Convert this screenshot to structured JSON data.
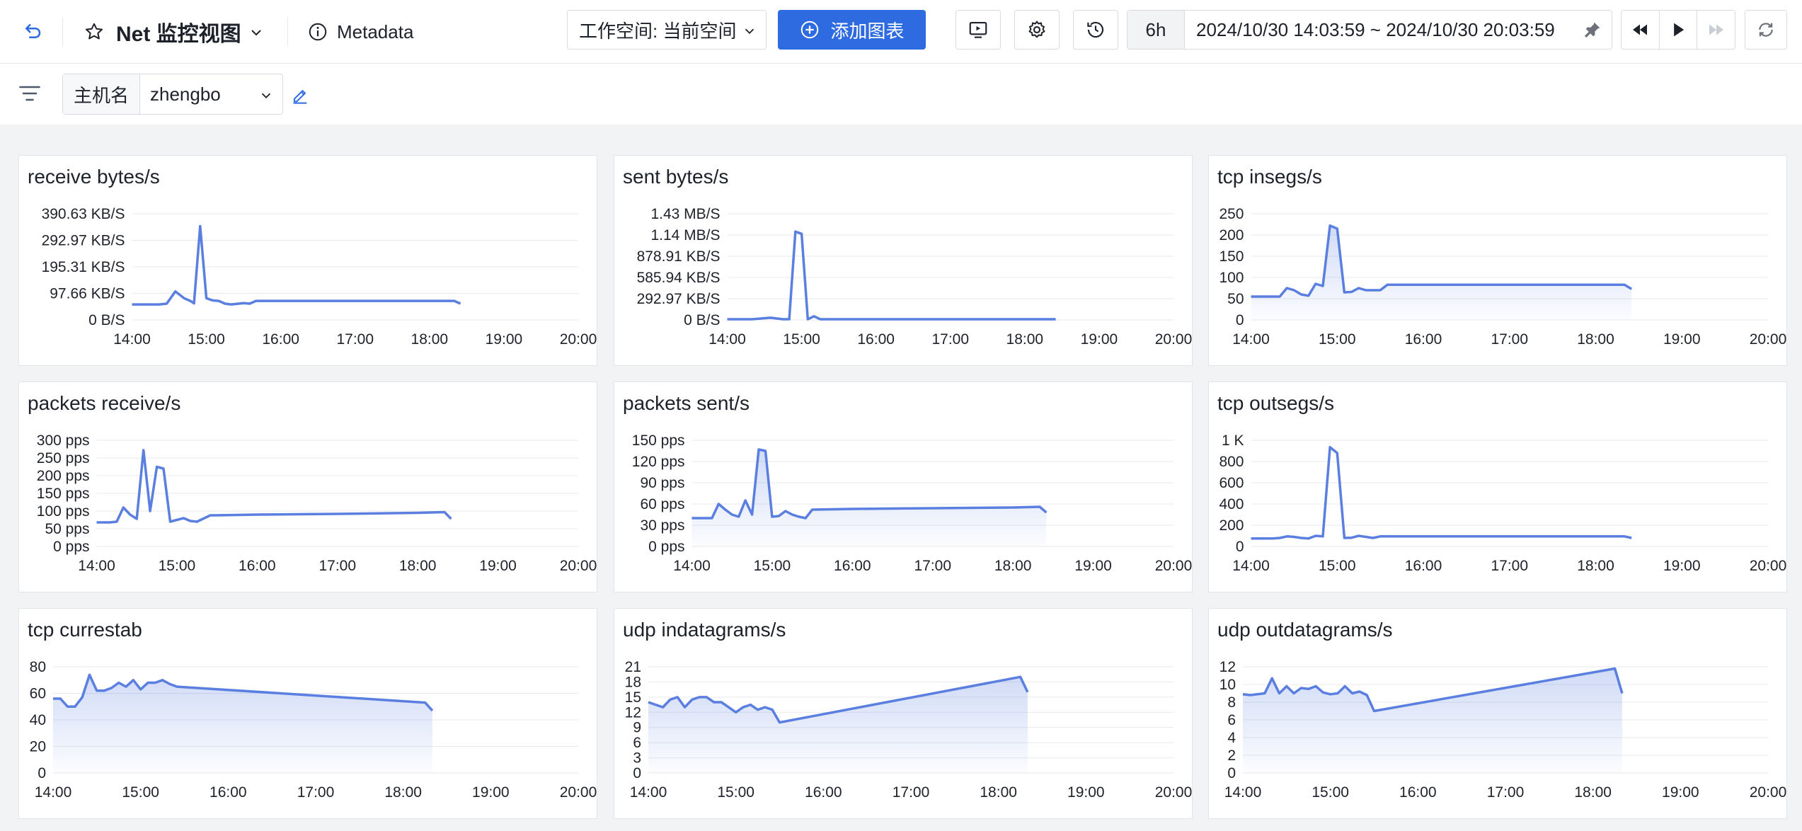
{
  "header": {
    "title": "Net 监控视图",
    "metadata_label": "Metadata",
    "workspace_select": "工作空间: 当前空间",
    "add_chart_label": "添加图表",
    "quick_range": "6h",
    "time_range": "2024/10/30 14:03:59 ~ 2024/10/30 20:03:59"
  },
  "filter": {
    "label": "主机名",
    "value": "zhengbo"
  },
  "colors": {
    "accent": "#2f6be0",
    "line": "#5a7fe0"
  },
  "panels": [
    {
      "title": "receive bytes/s",
      "chart_data": {
        "type": "line",
        "title": "receive bytes/s",
        "x_ticks": [
          "14:00",
          "15:00",
          "16:00",
          "17:00",
          "18:00",
          "19:00",
          "20:00"
        ],
        "y_ticks": [
          "0 B/S",
          "97.66 KB/S",
          "195.31 KB/S",
          "292.97 KB/S",
          "390.63 KB/S"
        ],
        "y_max": 390.63,
        "area": false,
        "x": [
          "14:00",
          "14:15",
          "14:22",
          "14:28",
          "14:35",
          "14:42",
          "14:47",
          "14:50",
          "14:55",
          "15:00",
          "15:05",
          "15:10",
          "15:15",
          "15:20",
          "15:30",
          "15:35",
          "15:40",
          "17:00",
          "18:00",
          "18:20",
          "18:25"
        ],
        "y": [
          57,
          57,
          57,
          60,
          105,
          80,
          70,
          61,
          345,
          80,
          72,
          70,
          60,
          57,
          62,
          60,
          70,
          70,
          70,
          70,
          60
        ]
      }
    },
    {
      "title": "sent bytes/s",
      "chart_data": {
        "type": "line",
        "title": "sent bytes/s",
        "x_ticks": [
          "14:00",
          "15:00",
          "16:00",
          "17:00",
          "18:00",
          "19:00",
          "20:00"
        ],
        "y_ticks": [
          "0 B/S",
          "292.97 KB/S",
          "585.94 KB/S",
          "878.91 KB/S",
          "1.14 MB/S",
          "1.43 MB/S"
        ],
        "y_max": 1.43,
        "area": false,
        "x": [
          "14:00",
          "14:20",
          "14:35",
          "14:45",
          "14:50",
          "14:55",
          "15:00",
          "15:05",
          "15:10",
          "15:15",
          "15:20",
          "16:00",
          "17:00",
          "18:00",
          "18:25"
        ],
        "y": [
          0.01,
          0.01,
          0.03,
          0.01,
          0.01,
          1.19,
          1.16,
          0.01,
          0.05,
          0.01,
          0.01,
          0.01,
          0.01,
          0.01,
          0.01
        ]
      }
    },
    {
      "title": "tcp insegs/s",
      "chart_data": {
        "type": "line",
        "title": "tcp insegs/s",
        "x_ticks": [
          "14:00",
          "15:00",
          "16:00",
          "17:00",
          "18:00",
          "19:00",
          "20:00"
        ],
        "y_ticks": [
          "0",
          "50",
          "100",
          "150",
          "200",
          "250"
        ],
        "y_max": 250,
        "area": true,
        "x": [
          "14:00",
          "14:15",
          "14:20",
          "14:25",
          "14:30",
          "14:35",
          "14:40",
          "14:45",
          "14:50",
          "14:55",
          "15:00",
          "15:05",
          "15:10",
          "15:15",
          "15:20",
          "15:25",
          "15:30",
          "15:35",
          "16:00",
          "17:00",
          "18:00",
          "18:20",
          "18:25"
        ],
        "y": [
          55,
          55,
          55,
          75,
          70,
          60,
          57,
          85,
          80,
          222,
          215,
          65,
          66,
          75,
          70,
          70,
          70,
          83,
          83,
          83,
          83,
          83,
          73
        ]
      }
    },
    {
      "title": "packets receive/s",
      "chart_data": {
        "type": "line",
        "title": "packets receive/s",
        "x_ticks": [
          "14:00",
          "15:00",
          "16:00",
          "17:00",
          "18:00",
          "19:00",
          "20:00"
        ],
        "y_ticks": [
          "0 pps",
          "50 pps",
          "100 pps",
          "150 pps",
          "200 pps",
          "250 pps",
          "300 pps"
        ],
        "y_max": 300,
        "area": false,
        "x": [
          "14:00",
          "14:10",
          "14:15",
          "14:20",
          "14:25",
          "14:30",
          "14:35",
          "14:40",
          "14:45",
          "14:50",
          "14:55",
          "15:00",
          "15:05",
          "15:10",
          "15:15",
          "15:25",
          "15:30",
          "16:00",
          "17:00",
          "18:00",
          "18:20",
          "18:25"
        ],
        "y": [
          68,
          68,
          70,
          110,
          90,
          78,
          272,
          100,
          225,
          220,
          70,
          75,
          80,
          72,
          70,
          88,
          88,
          90,
          92,
          95,
          97,
          78
        ]
      }
    },
    {
      "title": "packets sent/s",
      "chart_data": {
        "type": "line",
        "title": "packets sent/s",
        "x_ticks": [
          "14:00",
          "15:00",
          "16:00",
          "17:00",
          "18:00",
          "19:00",
          "20:00"
        ],
        "y_ticks": [
          "0 pps",
          "30 pps",
          "60 pps",
          "90 pps",
          "120 pps",
          "150 pps"
        ],
        "y_max": 150,
        "area": true,
        "x": [
          "14:00",
          "14:10",
          "14:15",
          "14:20",
          "14:25",
          "14:30",
          "14:35",
          "14:40",
          "14:45",
          "14:50",
          "14:55",
          "15:00",
          "15:05",
          "15:10",
          "15:15",
          "15:20",
          "15:25",
          "15:30",
          "16:00",
          "17:00",
          "18:00",
          "18:20",
          "18:25"
        ],
        "y": [
          40,
          40,
          40,
          60,
          52,
          45,
          42,
          65,
          45,
          137,
          135,
          42,
          43,
          50,
          45,
          42,
          40,
          52,
          53,
          54,
          55,
          56,
          48
        ]
      }
    },
    {
      "title": "tcp outsegs/s",
      "chart_data": {
        "type": "line",
        "title": "tcp outsegs/s",
        "x_ticks": [
          "14:00",
          "15:00",
          "16:00",
          "17:00",
          "18:00",
          "19:00",
          "20:00"
        ],
        "y_ticks": [
          "0",
          "200",
          "400",
          "600",
          "800",
          "1 K"
        ],
        "y_max": 1000,
        "area": false,
        "x": [
          "14:00",
          "14:15",
          "14:20",
          "14:25",
          "14:30",
          "14:35",
          "14:40",
          "14:45",
          "14:50",
          "14:55",
          "15:00",
          "15:05",
          "15:10",
          "15:15",
          "15:20",
          "15:25",
          "15:30",
          "16:00",
          "17:00",
          "18:00",
          "18:20",
          "18:25"
        ],
        "y": [
          75,
          75,
          80,
          95,
          90,
          80,
          75,
          100,
          95,
          935,
          880,
          80,
          82,
          100,
          90,
          80,
          95,
          95,
          95,
          95,
          95,
          80
        ]
      }
    },
    {
      "title": "tcp currestab",
      "chart_data": {
        "type": "line",
        "title": "tcp currestab",
        "x_ticks": [
          "14:00",
          "15:00",
          "16:00",
          "17:00",
          "18:00",
          "19:00",
          "20:00"
        ],
        "y_ticks": [
          "0",
          "20",
          "40",
          "60",
          "80"
        ],
        "y_max": 80,
        "area": true,
        "x": [
          "14:00",
          "14:05",
          "14:10",
          "14:15",
          "14:20",
          "14:25",
          "14:30",
          "14:35",
          "14:40",
          "14:45",
          "14:50",
          "14:55",
          "15:00",
          "15:05",
          "15:10",
          "15:15",
          "15:20",
          "15:25",
          "18:15",
          "18:20"
        ],
        "y": [
          56,
          56,
          50,
          50,
          57,
          74,
          62,
          62,
          64,
          68,
          65,
          70,
          63,
          68,
          68,
          70,
          67,
          65,
          53,
          47
        ]
      }
    },
    {
      "title": "udp indatagrams/s",
      "chart_data": {
        "type": "line",
        "title": "udp indatagrams/s",
        "x_ticks": [
          "14:00",
          "15:00",
          "16:00",
          "17:00",
          "18:00",
          "19:00",
          "20:00"
        ],
        "y_ticks": [
          "0",
          "3",
          "6",
          "9",
          "12",
          "15",
          "18",
          "21"
        ],
        "y_max": 21,
        "area": true,
        "x": [
          "14:00",
          "14:05",
          "14:10",
          "14:15",
          "14:20",
          "14:25",
          "14:30",
          "14:35",
          "14:40",
          "14:45",
          "14:50",
          "14:55",
          "15:00",
          "15:05",
          "15:10",
          "15:15",
          "15:20",
          "15:25",
          "15:30",
          "18:15",
          "18:20"
        ],
        "y": [
          14,
          13.5,
          13,
          14.5,
          15,
          13,
          14.5,
          15,
          15,
          14,
          14,
          13,
          12,
          13,
          13.5,
          12.5,
          13,
          12.5,
          10,
          19,
          16
        ]
      }
    },
    {
      "title": "udp outdatagrams/s",
      "chart_data": {
        "type": "line",
        "title": "udp outdatagrams/s",
        "x_ticks": [
          "14:00",
          "15:00",
          "16:00",
          "17:00",
          "18:00",
          "19:00",
          "20:00"
        ],
        "y_ticks": [
          "0",
          "2",
          "4",
          "6",
          "8",
          "10",
          "12"
        ],
        "y_max": 12,
        "area": true,
        "x": [
          "14:00",
          "14:05",
          "14:10",
          "14:15",
          "14:20",
          "14:25",
          "14:30",
          "14:35",
          "14:40",
          "14:45",
          "14:50",
          "14:55",
          "15:00",
          "15:05",
          "15:10",
          "15:15",
          "15:20",
          "15:25",
          "15:30",
          "18:15",
          "18:20"
        ],
        "y": [
          8.9,
          8.8,
          8.9,
          9.0,
          10.7,
          9.0,
          9.8,
          9.0,
          9.6,
          9.5,
          9.8,
          9.1,
          8.9,
          9.0,
          9.8,
          9.0,
          9.2,
          8.8,
          7.0,
          11.8,
          9.0
        ]
      }
    }
  ]
}
